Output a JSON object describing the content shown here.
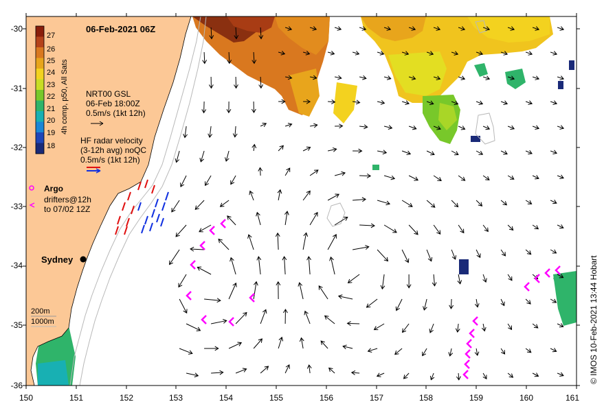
{
  "map": {
    "title": "06-Feb-2021 06Z",
    "x_ticks": [
      "150",
      "151",
      "152",
      "153",
      "154",
      "155",
      "156",
      "157",
      "158",
      "159",
      "160",
      "161"
    ],
    "y_ticks": [
      "-30",
      "-31",
      "-32",
      "-33",
      "-34",
      "-35",
      "-36"
    ],
    "credit": "© IMOS 10-Feb-2021 13:44 Hobart",
    "colorbar": {
      "label": "4h comp, p50, All Sats",
      "ticks": [
        "27",
        "26",
        "25",
        "24",
        "23",
        "22",
        "21",
        "20",
        "19",
        "18"
      ],
      "colors": [
        "#8a1e0a",
        "#b5431a",
        "#d9781f",
        "#e8a51c",
        "#f3d21f",
        "#c8dd24",
        "#78c82a",
        "#2fb46a",
        "#18b0b3",
        "#1a86d6",
        "#1f45b8",
        "#1a2a78"
      ]
    },
    "legend": {
      "nrt_title": "NRT00 GSL",
      "nrt_time": "06-Feb 18:00Z",
      "nrt_scale": "0.5m/s (1kt 12h)",
      "hf_title": "HF radar velocity",
      "hf_avg": "(3-12h avg) noQC",
      "hf_scale": "0.5m/s (1kt 12h)",
      "argo_label": "Argo",
      "drifters_line1": "drifters@12h",
      "drifters_line2": "to 07/02 12Z",
      "contour_200": "200m",
      "contour_1000": "1000m",
      "city": "Sydney"
    },
    "colors": {
      "land": "#fcc896",
      "argo": "#ff00ff",
      "hf_red": "#e01010",
      "hf_blue": "#1030e0",
      "arrow": "#000000"
    }
  }
}
